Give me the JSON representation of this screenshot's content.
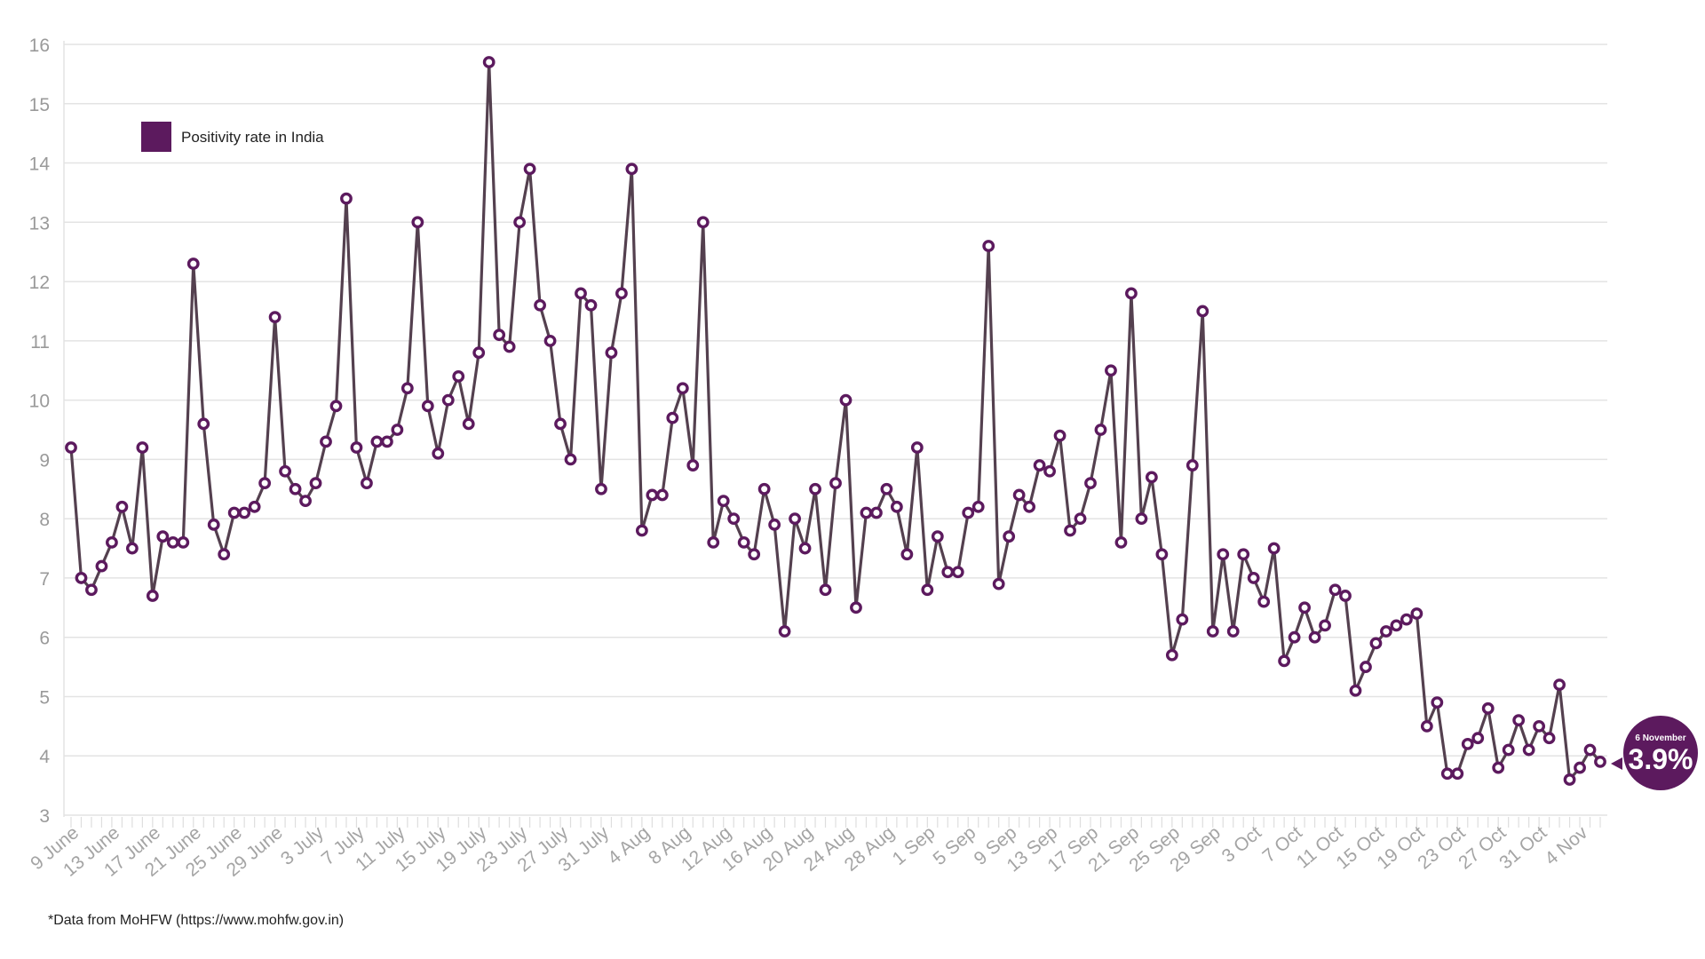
{
  "colors": {
    "accent": "#5c1a5e",
    "line": "#54404f",
    "grid": "#e3e3e3"
  },
  "source_note": "*Data from MoHFW (https://www.mohfw.gov.in)",
  "callout": {
    "date": "6 November",
    "value": "3.9%"
  },
  "chart_data": {
    "type": "line",
    "legend": {
      "label": "Positivity rate in India",
      "position": "top-left"
    },
    "grid": true,
    "ylim": [
      3,
      16
    ],
    "yticks": [
      3,
      4,
      5,
      6,
      7,
      8,
      9,
      10,
      11,
      12,
      13,
      14,
      15,
      16
    ],
    "x_start": "9 June",
    "x_end": "6 November",
    "xtick_labels": [
      "9 June",
      "13 June",
      "17 June",
      "21 June",
      "25 June",
      "29 June",
      "3 July",
      "7 July",
      "11 July",
      "15 July",
      "19 July",
      "23 July",
      "27 July",
      "31 July",
      "4 Aug",
      "8 Aug",
      "12 Aug",
      "16 Aug",
      "20 Aug",
      "24 Aug",
      "28 Aug",
      "1 Sep",
      "5 Sep",
      "9 Sep",
      "13 Sep",
      "17 Sep",
      "21 Sep",
      "25 Sep",
      "29 Sep",
      "3 Oct",
      "7 Oct",
      "11 Oct",
      "15 Oct",
      "19 Oct",
      "23 Oct",
      "27 Oct",
      "31 Oct",
      "4 Nov"
    ],
    "series": [
      {
        "name": "Positivity rate in India",
        "values": [
          9.2,
          7.0,
          6.8,
          7.2,
          7.6,
          8.2,
          7.5,
          9.2,
          6.7,
          7.7,
          7.6,
          7.6,
          12.3,
          9.6,
          7.9,
          7.4,
          8.1,
          8.1,
          8.2,
          8.6,
          11.4,
          8.8,
          8.5,
          8.3,
          8.6,
          9.3,
          9.9,
          13.4,
          9.2,
          8.6,
          9.3,
          9.3,
          9.5,
          10.2,
          13.0,
          9.9,
          9.1,
          10.0,
          10.4,
          9.6,
          10.8,
          15.7,
          11.1,
          10.9,
          13.0,
          13.9,
          11.6,
          11.0,
          9.6,
          9.0,
          11.8,
          11.6,
          8.5,
          10.8,
          11.8,
          13.9,
          7.8,
          8.4,
          8.4,
          9.7,
          10.2,
          8.9,
          13.0,
          7.6,
          8.3,
          8.0,
          7.6,
          7.4,
          8.5,
          7.9,
          6.1,
          8.0,
          7.5,
          8.5,
          6.8,
          8.6,
          10.0,
          6.5,
          8.1,
          8.1,
          8.5,
          8.2,
          7.4,
          9.2,
          6.8,
          7.7,
          7.1,
          7.1,
          8.1,
          8.2,
          12.6,
          6.9,
          7.7,
          8.4,
          8.2,
          8.9,
          8.8,
          9.4,
          7.8,
          8.0,
          8.6,
          9.5,
          10.5,
          7.6,
          11.8,
          8.0,
          8.7,
          7.4,
          5.7,
          6.3,
          8.9,
          11.5,
          6.1,
          7.4,
          6.1,
          7.4,
          7.0,
          6.6,
          7.5,
          5.6,
          6.0,
          6.5,
          6.0,
          6.2,
          6.8,
          6.7,
          5.1,
          5.5,
          5.9,
          6.1,
          6.2,
          6.3,
          6.4,
          4.5,
          4.9,
          3.7,
          3.7,
          4.2,
          4.3,
          4.8,
          3.8,
          4.1,
          4.6,
          4.1,
          4.5,
          4.3,
          5.2,
          3.6,
          3.8,
          4.1,
          3.9
        ]
      }
    ]
  }
}
